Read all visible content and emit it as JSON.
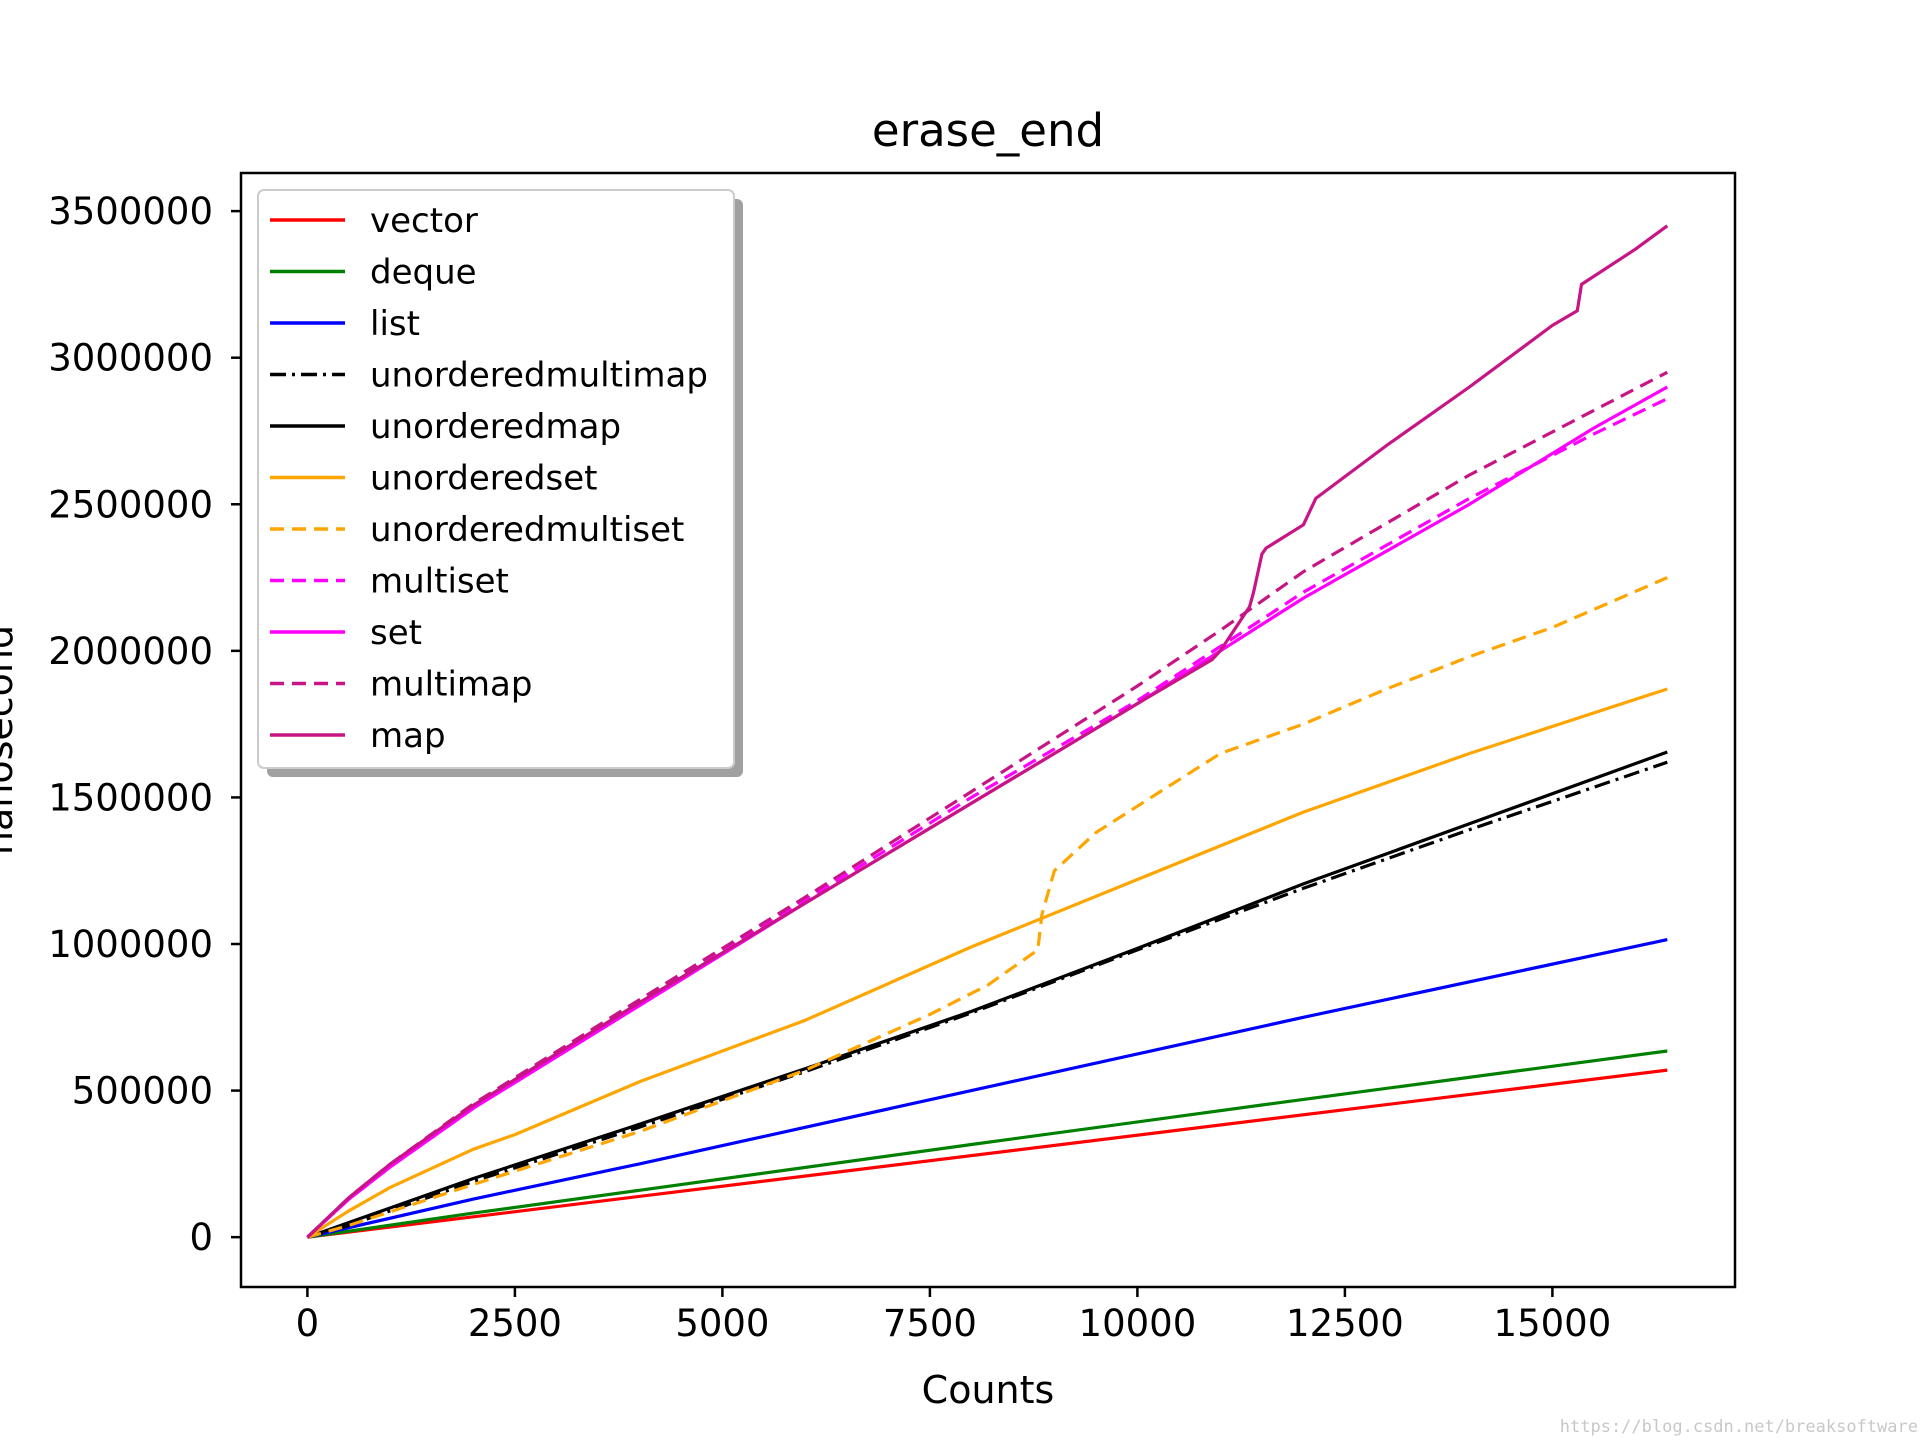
{
  "chart_data": {
    "type": "line",
    "title": "erase_end",
    "xlabel": "Counts",
    "ylabel": "nanosecond",
    "xlim": [
      -800,
      17200
    ],
    "ylim": [
      -170000,
      3630000
    ],
    "xticks": [
      0,
      2500,
      5000,
      7500,
      10000,
      12500,
      15000
    ],
    "yticks": [
      0,
      500000,
      1000000,
      1500000,
      2000000,
      2500000,
      3000000,
      3500000
    ],
    "legend_position": "upper left",
    "series": [
      {
        "name": "vector",
        "color": "#ff0000",
        "style": "solid",
        "x": [
          0,
          16384
        ],
        "y": [
          0,
          570000
        ]
      },
      {
        "name": "deque",
        "color": "#008000",
        "style": "solid",
        "x": [
          0,
          2000,
          4000,
          8000,
          12000,
          16384
        ],
        "y": [
          0,
          82000,
          160000,
          316000,
          470000,
          635000
        ]
      },
      {
        "name": "list",
        "color": "#0000ff",
        "style": "solid",
        "x": [
          0,
          2000,
          4000,
          8000,
          12000,
          16384
        ],
        "y": [
          0,
          130000,
          250000,
          500000,
          750000,
          1015000
        ]
      },
      {
        "name": "unorderedmultimap",
        "color": "#000000",
        "style": "dashdot",
        "x": [
          0,
          500,
          2000,
          4000,
          6000,
          8000,
          10000,
          12000,
          14000,
          16384
        ],
        "y": [
          0,
          40000,
          190000,
          375000,
          565000,
          765000,
          980000,
          1190000,
          1390000,
          1620000
        ]
      },
      {
        "name": "unorderedmap",
        "color": "#000000",
        "style": "solid",
        "x": [
          0,
          500,
          2000,
          4000,
          6000,
          8000,
          10000,
          12000,
          14000,
          16384
        ],
        "y": [
          0,
          50000,
          200000,
          385000,
          575000,
          770000,
          985000,
          1205000,
          1410000,
          1655000
        ]
      },
      {
        "name": "unorderedset",
        "color": "#ffa500",
        "style": "solid",
        "x": [
          0,
          500,
          1000,
          2000,
          2500,
          4000,
          6000,
          8000,
          10000,
          12000,
          14000,
          16384
        ],
        "y": [
          0,
          90000,
          170000,
          300000,
          350000,
          530000,
          740000,
          990000,
          1220000,
          1450000,
          1650000,
          1870000
        ]
      },
      {
        "name": "unorderedmultiset",
        "color": "#ffa500",
        "style": "dashed",
        "x": [
          0,
          500,
          2000,
          4000,
          6000,
          7500,
          8200,
          8800,
          8850,
          9000,
          9500,
          10000,
          10500,
          11000,
          12000,
          13000,
          14000,
          15000,
          16384
        ],
        "y": [
          0,
          40000,
          180000,
          360000,
          570000,
          760000,
          860000,
          980000,
          1100000,
          1250000,
          1380000,
          1470000,
          1560000,
          1650000,
          1750000,
          1870000,
          1980000,
          2080000,
          2250000
        ]
      },
      {
        "name": "multiset",
        "color": "#ff00ff",
        "style": "dashed",
        "x": [
          0,
          500,
          1000,
          2000,
          4000,
          6000,
          8000,
          10000,
          12000,
          14000,
          15500,
          16384
        ],
        "y": [
          0,
          130000,
          240000,
          440000,
          800000,
          1150000,
          1500000,
          1830000,
          2200000,
          2520000,
          2740000,
          2860000
        ]
      },
      {
        "name": "set",
        "color": "#ff00ff",
        "style": "solid",
        "x": [
          0,
          500,
          1000,
          2000,
          4000,
          6000,
          8000,
          10000,
          12000,
          14000,
          15500,
          16384
        ],
        "y": [
          0,
          130000,
          240000,
          440000,
          790000,
          1140000,
          1480000,
          1820000,
          2180000,
          2500000,
          2760000,
          2900000
        ]
      },
      {
        "name": "multimap",
        "color": "#c71585",
        "style": "dashed",
        "x": [
          0,
          500,
          1000,
          2000,
          4000,
          6000,
          8000,
          10000,
          11000,
          12000,
          14000,
          16384
        ],
        "y": [
          0,
          135000,
          250000,
          455000,
          810000,
          1160000,
          1520000,
          1880000,
          2070000,
          2270000,
          2600000,
          2950000
        ]
      },
      {
        "name": "map",
        "color": "#c71585",
        "style": "solid",
        "x": [
          0,
          500,
          1000,
          2000,
          4000,
          6000,
          8000,
          10000,
          10900,
          11000,
          11350,
          11400,
          11500,
          11550,
          12000,
          12150,
          13000,
          14000,
          15000,
          15300,
          15350,
          16000,
          16384
        ],
        "y": [
          0,
          135000,
          250000,
          450000,
          800000,
          1140000,
          1480000,
          1820000,
          1970000,
          2000000,
          2150000,
          2200000,
          2330000,
          2350000,
          2430000,
          2520000,
          2700000,
          2900000,
          3110000,
          3160000,
          3250000,
          3370000,
          3450000
        ]
      }
    ]
  },
  "watermark": "https://blog.csdn.net/breaksoftware"
}
